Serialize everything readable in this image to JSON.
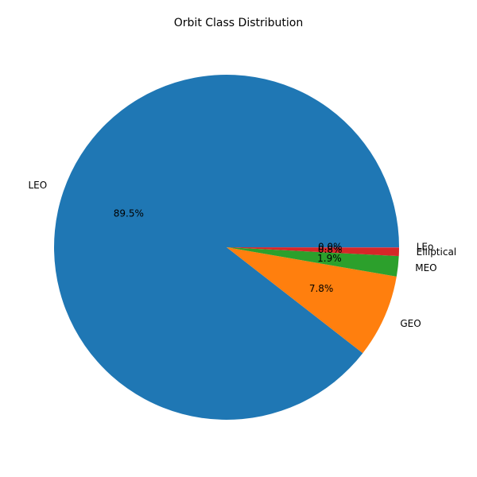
{
  "chart_data": {
    "type": "pie",
    "title": "Orbit Class Distribution",
    "slices": [
      {
        "label": "LEO",
        "value": 89.5,
        "pct_label": "89.5%",
        "color": "#1f77b4"
      },
      {
        "label": "GEO",
        "value": 7.8,
        "pct_label": "7.8%",
        "color": "#ff7f0e"
      },
      {
        "label": "MEO",
        "value": 1.9,
        "pct_label": "1.9%",
        "color": "#2ca02c"
      },
      {
        "label": "Elliptical",
        "value": 0.8,
        "pct_label": "0.8%",
        "color": "#d62728"
      },
      {
        "label": "LEo",
        "value": 0.02,
        "pct_label": "0.0%",
        "color": "#9467bd"
      }
    ],
    "start_angle": "0 degrees (3 o'clock), counter-clockwise",
    "legend": "none"
  }
}
